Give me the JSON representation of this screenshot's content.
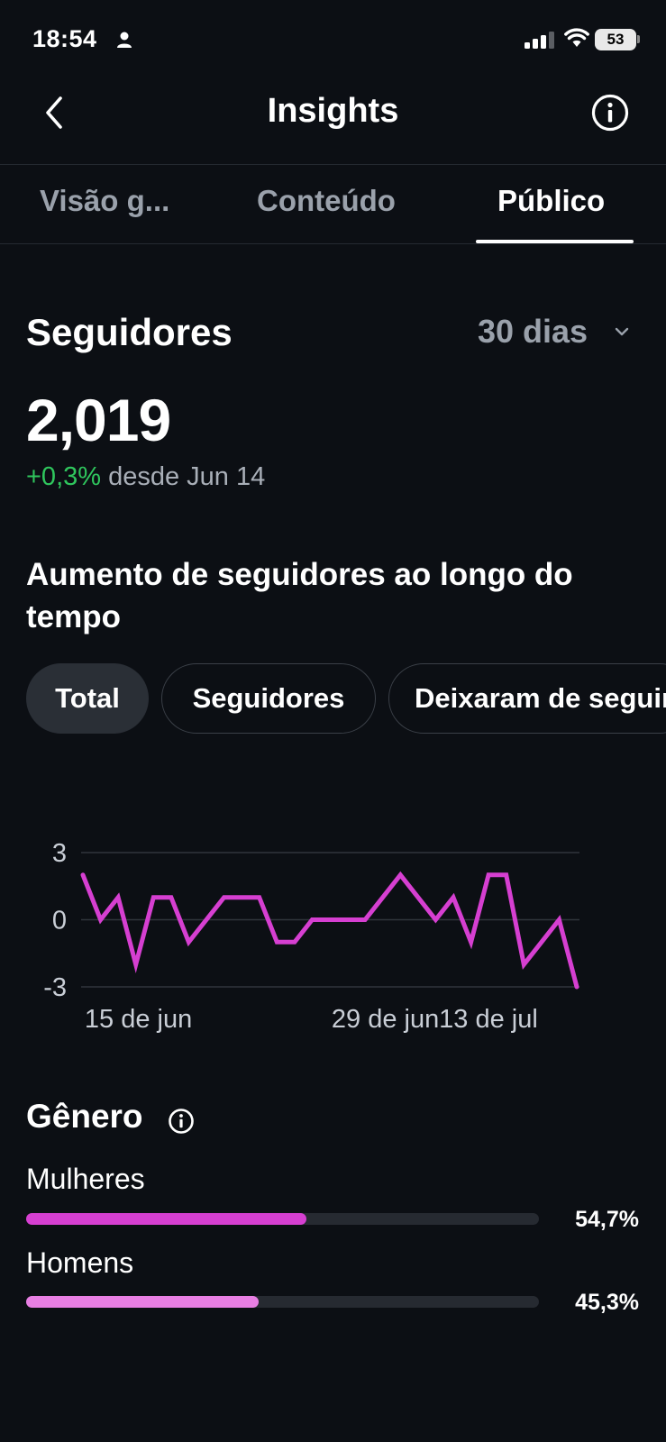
{
  "status_bar": {
    "time": "18:54",
    "battery": "53"
  },
  "header": {
    "title": "Insights"
  },
  "tabs": [
    {
      "label": "Visão g..."
    },
    {
      "label": "Conteúdo"
    },
    {
      "label": "Público"
    }
  ],
  "followers": {
    "title": "Seguidores",
    "period": "30 dias",
    "count": "2,019",
    "change": "+0,3%",
    "since": "desde Jun 14"
  },
  "growth": {
    "title": "Aumento de seguidores ao longo do tempo",
    "filters": [
      {
        "label": "Total"
      },
      {
        "label": "Seguidores"
      },
      {
        "label": "Deixaram de seguir"
      }
    ]
  },
  "chart_data": {
    "type": "line",
    "y_ticks": [
      "3",
      "0",
      "-3"
    ],
    "ylim": [
      -3,
      3
    ],
    "x_ticks": [
      "15 de jun",
      "29 de jun",
      "13 de jul"
    ],
    "x_tick_index": [
      1,
      15,
      29
    ],
    "series": [
      {
        "color": "#d63fd1",
        "values": [
          2,
          0,
          1,
          -2,
          1,
          1,
          -1,
          0,
          1,
          1,
          1,
          -1,
          -1,
          0,
          0,
          0,
          0,
          1,
          2,
          1,
          0,
          1,
          -1,
          2,
          2,
          -2,
          -1,
          0,
          -3
        ]
      }
    ],
    "grid": true
  },
  "gender": {
    "title": "Gênero",
    "items": [
      {
        "label": "Mulheres",
        "percent_text": "54,7%",
        "value": 54.7,
        "color": "#d63fd1"
      },
      {
        "label": "Homens",
        "percent_text": "45,3%",
        "value": 45.3,
        "color": "#e87fe3"
      }
    ]
  }
}
